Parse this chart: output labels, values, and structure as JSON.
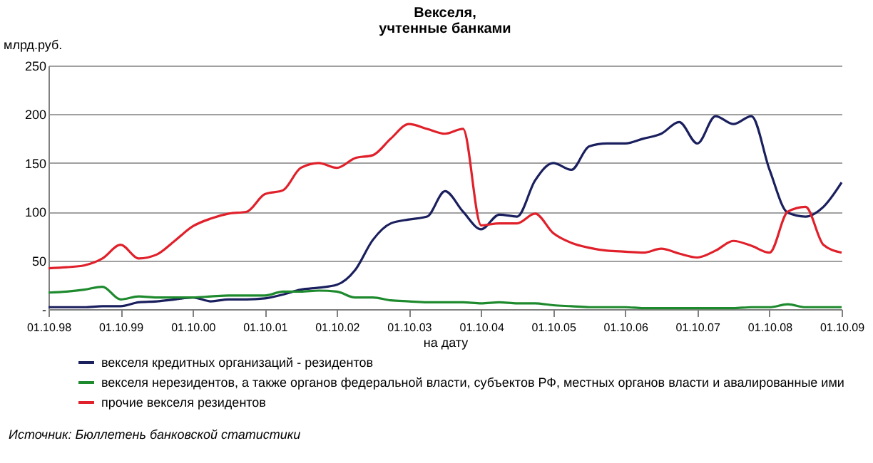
{
  "chart_data": {
    "type": "line",
    "title": "Векселя,\nучтенные банками",
    "xlabel": "на дату",
    "ylabel": "млрд.руб.",
    "x": [
      "1998-10",
      "1999-01",
      "1999-04",
      "1999-07",
      "1999-10",
      "2000-01",
      "2000-04",
      "2000-07",
      "2000-10",
      "2001-01",
      "2001-04",
      "2001-07",
      "2001-10",
      "2002-01",
      "2002-04",
      "2002-07",
      "2002-10",
      "2003-01",
      "2003-04",
      "2003-07",
      "2003-10",
      "2004-01",
      "2004-04",
      "2004-07",
      "2004-10",
      "2005-01",
      "2005-04",
      "2005-07",
      "2005-10",
      "2006-01",
      "2006-04",
      "2006-07",
      "2006-10",
      "2007-01",
      "2007-04",
      "2007-07",
      "2007-10",
      "2008-01",
      "2008-04",
      "2008-07",
      "2008-10",
      "2009-01",
      "2009-04",
      "2009-07",
      "2009-10"
    ],
    "series": [
      {
        "name": "векселя кредитных организаций - резидентов",
        "color": "#1a1f5e",
        "values": [
          2,
          2,
          2,
          3,
          3,
          7,
          8,
          10,
          12,
          8,
          10,
          10,
          11,
          15,
          20,
          22,
          25,
          40,
          71,
          88,
          92,
          95,
          121,
          100,
          82,
          97,
          95,
          132,
          150,
          143,
          167,
          170,
          170,
          175,
          180,
          192,
          170,
          198,
          190,
          198,
          143,
          99,
          95,
          105,
          130
        ]
      },
      {
        "name": "векселя нерезидентов, а также органов федеральной власти, субъектов РФ, местных органов власти   и авалированные ими",
        "color": "#1e8a2e",
        "values": [
          17,
          18,
          20,
          23,
          10,
          13,
          12,
          12,
          12,
          13,
          14,
          14,
          14,
          18,
          18,
          19,
          18,
          12,
          12,
          9,
          8,
          7,
          7,
          7,
          6,
          7,
          6,
          6,
          4,
          3,
          2,
          2,
          2,
          1,
          1,
          1,
          1,
          1,
          1,
          2,
          2,
          5,
          2,
          2,
          2
        ]
      },
      {
        "name": "прочие векселя резидентов",
        "color": "#e0202a",
        "values": [
          42,
          43,
          45,
          52,
          66,
          52,
          56,
          70,
          85,
          93,
          98,
          100,
          118,
          122,
          145,
          150,
          145,
          155,
          158,
          175,
          190,
          185,
          180,
          185,
          86,
          88,
          88,
          98,
          78,
          68,
          63,
          60,
          59,
          58,
          62,
          57,
          53,
          60,
          70,
          65,
          58,
          100,
          105,
          66,
          58
        ]
      }
    ],
    "xlim": [
      "1998-10-01",
      "2009-10-01"
    ],
    "xticks": [
      {
        "value": "1998-10-01",
        "label": "01.10.98"
      },
      {
        "value": "1999-10-01",
        "label": "01.10.99"
      },
      {
        "value": "2000-10-01",
        "label": "01.10.00"
      },
      {
        "value": "2001-10-01",
        "label": "01.10.01"
      },
      {
        "value": "2002-10-01",
        "label": "01.10.02"
      },
      {
        "value": "2003-10-01",
        "label": "01.10.03"
      },
      {
        "value": "2004-10-01",
        "label": "01.10.04"
      },
      {
        "value": "2005-10-01",
        "label": "01.10.05"
      },
      {
        "value": "2006-10-01",
        "label": "01.10.06"
      },
      {
        "value": "2007-10-01",
        "label": "01.10.07"
      },
      {
        "value": "2008-10-01",
        "label": "01.10.08"
      },
      {
        "value": "2009-10-01",
        "label": "01.10.09"
      }
    ],
    "ylim": [
      0,
      250
    ],
    "yticks": [
      {
        "value": 0,
        "label": "-"
      },
      50,
      100,
      150,
      200,
      250
    ],
    "grid": "y",
    "legend": "bottom",
    "marker": "none",
    "line_style": "solid",
    "annotations": [
      "Источник: Бюллетень банковской статистики"
    ]
  }
}
